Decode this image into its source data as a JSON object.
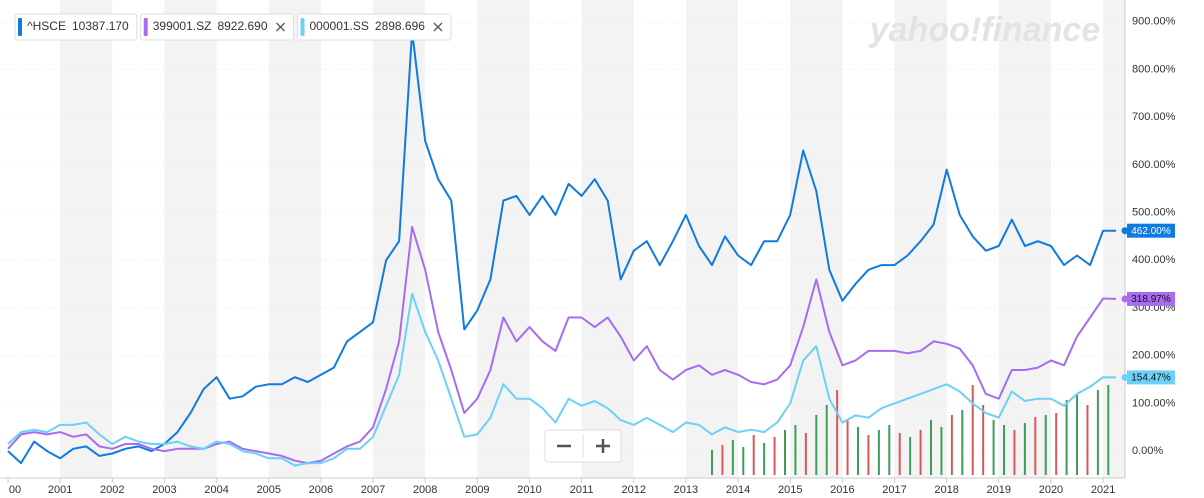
{
  "chart_data": {
    "type": "line",
    "watermark": "yahoo!finance",
    "x": [
      2000,
      2000.25,
      2000.5,
      2000.75,
      2001,
      2001.25,
      2001.5,
      2001.75,
      2002,
      2002.25,
      2002.5,
      2002.75,
      2003,
      2003.25,
      2003.5,
      2003.75,
      2004,
      2004.25,
      2004.5,
      2004.75,
      2005,
      2005.25,
      2005.5,
      2005.75,
      2006,
      2006.25,
      2006.5,
      2006.75,
      2007,
      2007.25,
      2007.5,
      2007.75,
      2008,
      2008.25,
      2008.5,
      2008.75,
      2009,
      2009.25,
      2009.5,
      2009.75,
      2010,
      2010.25,
      2010.5,
      2010.75,
      2011,
      2011.25,
      2011.5,
      2011.75,
      2012,
      2012.25,
      2012.5,
      2012.75,
      2013,
      2013.25,
      2013.5,
      2013.75,
      2014,
      2014.25,
      2014.5,
      2014.75,
      2015,
      2015.25,
      2015.5,
      2015.75,
      2016,
      2016.25,
      2016.5,
      2016.75,
      2017,
      2017.25,
      2017.5,
      2017.75,
      2018,
      2018.25,
      2018.5,
      2018.75,
      2019,
      2019.25,
      2019.5,
      2019.75,
      2020,
      2020.25,
      2020.5,
      2020.75,
      2021,
      2021.25
    ],
    "series": [
      {
        "name": "^HSCE",
        "quote": "10387.170",
        "color": "#0f7be0",
        "end_label": "462.00%",
        "values": [
          0,
          -25,
          20,
          0,
          -15,
          5,
          10,
          -10,
          -5,
          5,
          10,
          0,
          15,
          40,
          80,
          130,
          155,
          110,
          115,
          135,
          140,
          140,
          155,
          145,
          160,
          175,
          230,
          250,
          270,
          400,
          440,
          880,
          650,
          570,
          525,
          255,
          295,
          360,
          525,
          535,
          495,
          535,
          495,
          560,
          535,
          570,
          525,
          360,
          420,
          440,
          390,
          440,
          495,
          430,
          390,
          450,
          410,
          390,
          440,
          440,
          495,
          630,
          545,
          380,
          315,
          350,
          380,
          390,
          390,
          410,
          440,
          475,
          590,
          495,
          450,
          420,
          430,
          485,
          430,
          440,
          430,
          390,
          410,
          390,
          462,
          462
        ]
      },
      {
        "name": "399001.SZ",
        "quote": "8922.690",
        "color": "#a76cf0",
        "end_label": "318.97%",
        "values": [
          5,
          35,
          40,
          35,
          40,
          30,
          35,
          10,
          5,
          15,
          15,
          5,
          0,
          5,
          5,
          5,
          15,
          20,
          5,
          0,
          -5,
          -10,
          -20,
          -25,
          -20,
          -5,
          10,
          20,
          50,
          130,
          230,
          470,
          380,
          250,
          170,
          80,
          110,
          170,
          280,
          230,
          260,
          230,
          210,
          280,
          280,
          260,
          280,
          240,
          190,
          220,
          170,
          150,
          170,
          180,
          160,
          170,
          160,
          145,
          140,
          150,
          180,
          260,
          360,
          250,
          180,
          190,
          210,
          210,
          210,
          205,
          210,
          230,
          225,
          215,
          180,
          120,
          110,
          170,
          170,
          175,
          190,
          180,
          240,
          280,
          320,
          318.97
        ]
      },
      {
        "name": "000001.SS",
        "quote": "2898.696",
        "color": "#6dd0f7",
        "end_label": "154.47%",
        "values": [
          15,
          40,
          45,
          40,
          55,
          55,
          60,
          35,
          15,
          30,
          20,
          15,
          15,
          20,
          10,
          5,
          20,
          15,
          0,
          -5,
          -15,
          -15,
          -30,
          -25,
          -25,
          -15,
          5,
          5,
          30,
          95,
          160,
          330,
          250,
          190,
          110,
          30,
          35,
          70,
          140,
          110,
          110,
          90,
          60,
          110,
          95,
          105,
          90,
          65,
          55,
          70,
          55,
          40,
          60,
          55,
          35,
          50,
          40,
          45,
          40,
          60,
          100,
          190,
          220,
          110,
          60,
          75,
          70,
          90,
          100,
          110,
          120,
          130,
          140,
          125,
          100,
          80,
          70,
          125,
          105,
          110,
          110,
          95,
          120,
          135,
          155,
          154.47
        ]
      }
    ],
    "volume": {
      "colors": {
        "up": "#3d9d5b",
        "down": "#d7585a"
      },
      "x": [
        2013.5,
        2013.7,
        2013.9,
        2014.1,
        2014.3,
        2014.5,
        2014.7,
        2014.9,
        2015.1,
        2015.3,
        2015.5,
        2015.7,
        2015.9,
        2016.1,
        2016.3,
        2016.5,
        2016.7,
        2016.9,
        2017.1,
        2017.3,
        2017.5,
        2017.7,
        2017.9,
        2018.1,
        2018.3,
        2018.5,
        2018.7,
        2018.9,
        2019.1,
        2019.3,
        2019.5,
        2019.7,
        2019.9,
        2020.1,
        2020.3,
        2020.5,
        2020.7,
        2020.9,
        2021.1
      ],
      "values": [
        25,
        30,
        35,
        28,
        40,
        32,
        38,
        45,
        50,
        42,
        60,
        70,
        85,
        55,
        48,
        40,
        45,
        50,
        42,
        38,
        45,
        55,
        48,
        60,
        65,
        90,
        70,
        55,
        50,
        45,
        52,
        58,
        60,
        62,
        75,
        80,
        70,
        85,
        90
      ],
      "direction": [
        "up",
        "down",
        "up",
        "up",
        "down",
        "up",
        "down",
        "up",
        "up",
        "down",
        "up",
        "up",
        "down",
        "down",
        "up",
        "down",
        "up",
        "up",
        "down",
        "up",
        "down",
        "up",
        "up",
        "down",
        "up",
        "down",
        "down",
        "up",
        "up",
        "down",
        "up",
        "down",
        "up",
        "down",
        "up",
        "up",
        "down",
        "up",
        "up"
      ]
    },
    "xlim": [
      2000,
      2021.42
    ],
    "xticks": [
      {
        "value": 2000,
        "label": "00"
      },
      2001,
      2002,
      2003,
      2004,
      2005,
      2006,
      2007,
      2008,
      2009,
      2010,
      2011,
      2012,
      2013,
      2014,
      2015,
      2016,
      2017,
      2018,
      2019,
      2020,
      2021
    ],
    "ylim": [
      -50,
      935
    ],
    "yticks": [
      {
        "value": 0,
        "label": "0.00%"
      },
      {
        "value": 100,
        "label": "100.00%"
      },
      {
        "value": 200,
        "label": "200.00%"
      },
      {
        "value": 300,
        "label": "300.00%"
      },
      {
        "value": 400,
        "label": "400.00%"
      },
      {
        "value": 500,
        "label": "500.00%"
      },
      {
        "value": 600,
        "label": "600.00%"
      },
      {
        "value": 700,
        "label": "700.00%"
      },
      {
        "value": 800,
        "label": "800.00%"
      },
      {
        "value": 900,
        "label": "900.00%"
      }
    ],
    "grid": true
  }
}
